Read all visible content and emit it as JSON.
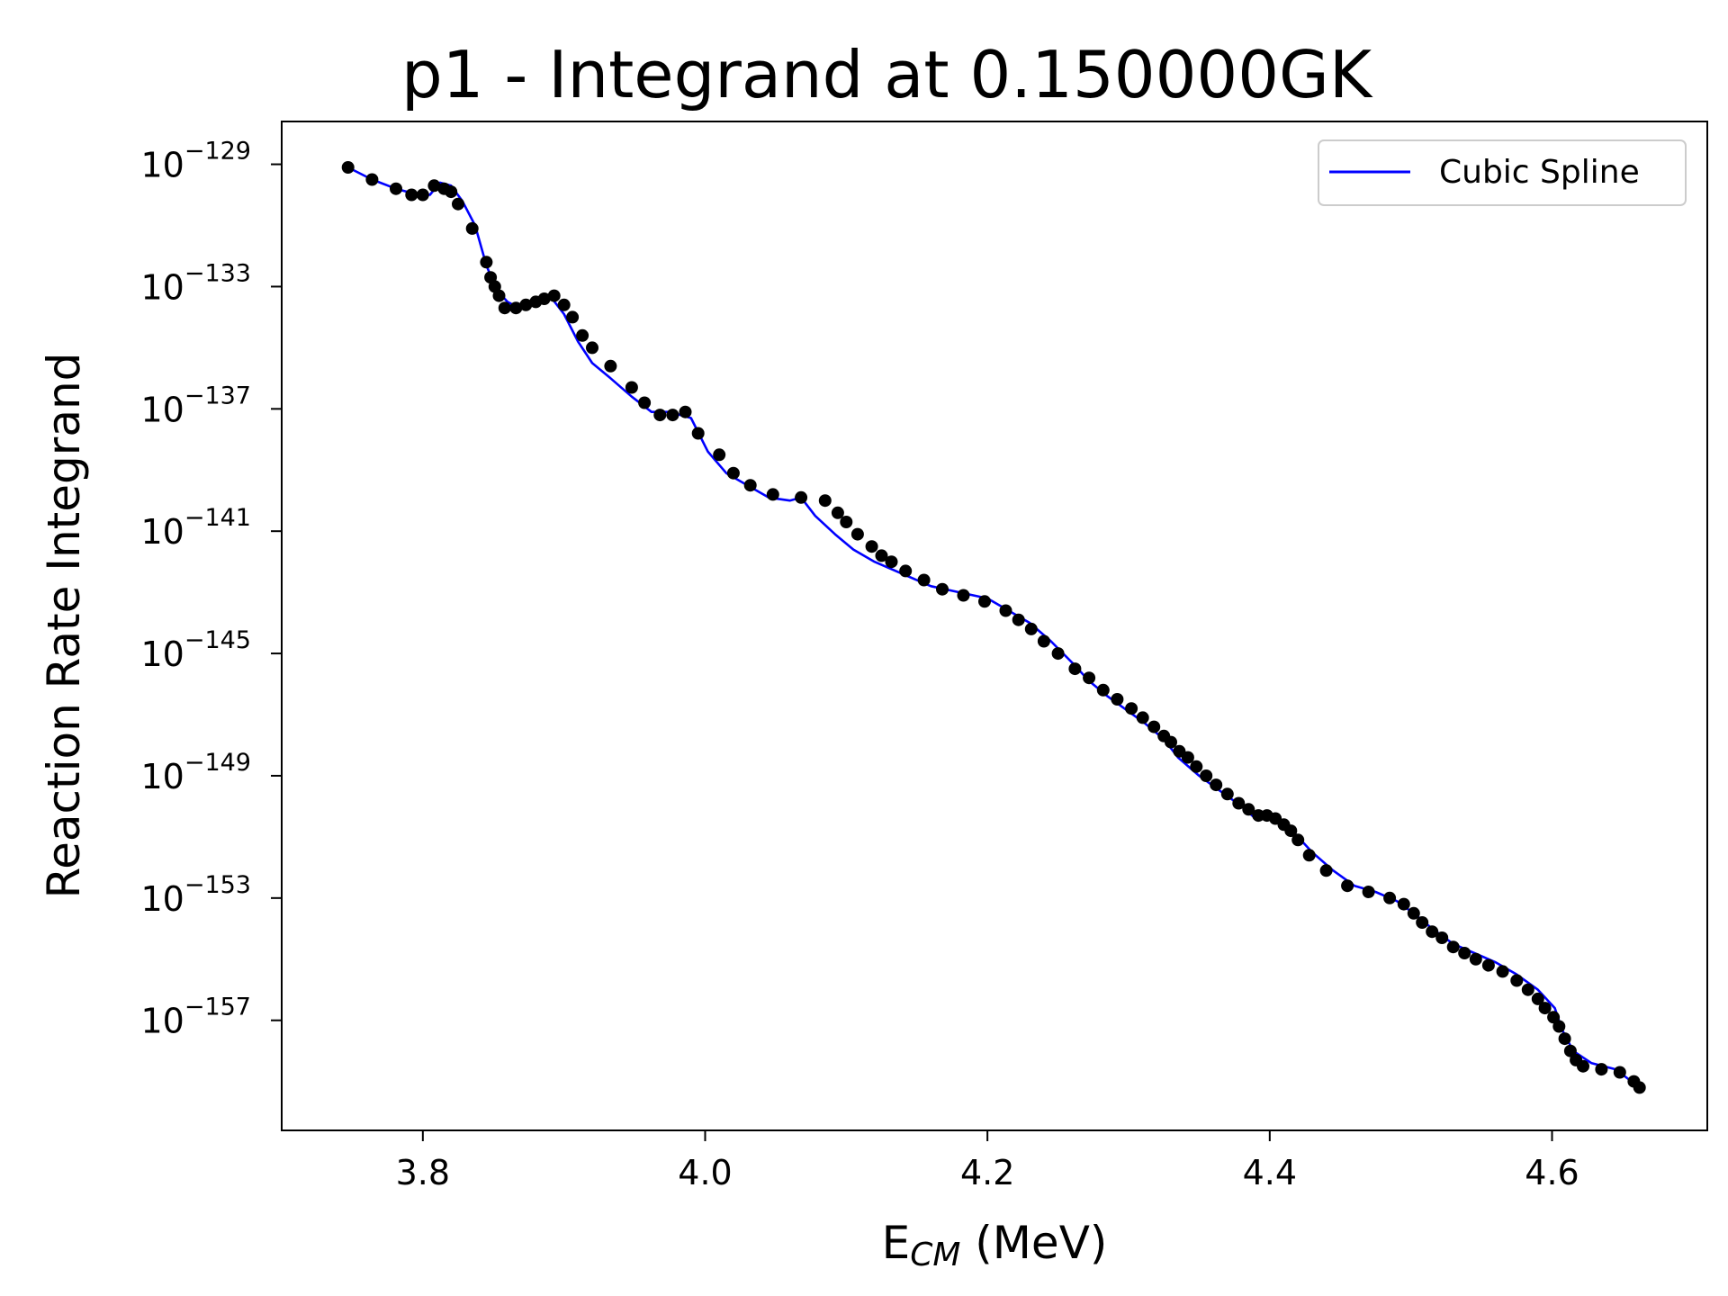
{
  "chart_data": {
    "type": "scatter",
    "title": "p1 - Integrand at 0.150000GK",
    "xlabel": {
      "base": "E",
      "subscript": "CM",
      "suffix": " (MeV)"
    },
    "ylabel": "Reaction Rate Integrand",
    "yscale": "log",
    "xlim": [
      3.7,
      4.71
    ],
    "ylim_exponent": [
      -160.6,
      -127.6
    ],
    "x_ticks": [
      {
        "value": 3.8,
        "label": "3.8"
      },
      {
        "value": 4.0,
        "label": "4.0"
      },
      {
        "value": 4.2,
        "label": "4.2"
      },
      {
        "value": 4.4,
        "label": "4.4"
      },
      {
        "value": 4.6,
        "label": "4.6"
      }
    ],
    "y_ticks": [
      {
        "exponent": -129,
        "base": "10",
        "sup": "−129"
      },
      {
        "exponent": -133,
        "base": "10",
        "sup": "−133"
      },
      {
        "exponent": -137,
        "base": "10",
        "sup": "−137"
      },
      {
        "exponent": -141,
        "base": "10",
        "sup": "−141"
      },
      {
        "exponent": -145,
        "base": "10",
        "sup": "−145"
      },
      {
        "exponent": -149,
        "base": "10",
        "sup": "−149"
      },
      {
        "exponent": -153,
        "base": "10",
        "sup": "−153"
      },
      {
        "exponent": -157,
        "base": "10",
        "sup": "−157"
      }
    ],
    "grid": false,
    "legend": {
      "position": "top-right",
      "entries": [
        {
          "label": "Cubic Spline",
          "color": "#0000ff",
          "style": "line"
        }
      ]
    },
    "series": [
      {
        "name": "Cubic Spline",
        "kind": "line",
        "color": "#0000ff",
        "x": [
          3.747,
          3.764,
          3.781,
          3.797,
          3.805,
          3.812,
          3.82,
          3.828,
          3.837,
          3.845,
          3.852,
          3.86,
          3.868,
          3.878,
          3.89,
          3.9,
          3.91,
          3.92,
          3.933,
          3.948,
          3.962,
          3.975,
          3.99,
          4.002,
          4.015,
          4.03,
          4.045,
          4.06,
          4.068,
          4.078,
          4.092,
          4.105,
          4.12,
          4.14,
          4.16,
          4.18,
          4.2,
          4.215,
          4.23,
          4.245,
          4.26,
          4.272,
          4.285,
          4.3,
          4.312,
          4.325,
          4.335,
          4.35,
          4.365,
          4.38,
          4.39,
          4.398,
          4.408,
          4.418,
          4.43,
          4.445,
          4.46,
          4.475,
          4.49,
          4.502,
          4.515,
          4.53,
          4.545,
          4.56,
          4.575,
          4.59,
          4.602,
          4.607,
          4.615,
          4.628,
          4.645,
          4.662
        ],
        "y": [
          -129.1,
          -129.5,
          -129.8,
          -130.0,
          -130.0,
          -129.6,
          -129.7,
          -130.2,
          -131.0,
          -132.3,
          -133.1,
          -133.5,
          -133.7,
          -133.6,
          -133.3,
          -133.9,
          -134.8,
          -135.5,
          -136.0,
          -136.6,
          -137.1,
          -137.1,
          -137.3,
          -138.4,
          -139.1,
          -139.5,
          -139.9,
          -140.0,
          -139.9,
          -140.5,
          -141.1,
          -141.6,
          -142.0,
          -142.4,
          -142.8,
          -143.0,
          -143.2,
          -143.6,
          -144.0,
          -144.6,
          -145.3,
          -145.9,
          -146.4,
          -146.9,
          -147.3,
          -147.8,
          -148.4,
          -149.0,
          -149.5,
          -150.0,
          -150.4,
          -150.3,
          -150.5,
          -150.9,
          -151.5,
          -152.1,
          -152.6,
          -152.8,
          -153.1,
          -153.5,
          -154.0,
          -154.5,
          -154.8,
          -155.1,
          -155.5,
          -156.0,
          -156.6,
          -157.3,
          -158.0,
          -158.4,
          -158.6,
          -159.2
        ]
      },
      {
        "name": "",
        "kind": "points",
        "color": "#000000",
        "x": [
          3.747,
          3.764,
          3.781,
          3.792,
          3.8,
          3.808,
          3.815,
          3.82,
          3.825,
          3.835,
          3.845,
          3.848,
          3.851,
          3.854,
          3.858,
          3.866,
          3.873,
          3.88,
          3.886,
          3.893,
          3.9,
          3.906,
          3.913,
          3.92,
          3.933,
          3.948,
          3.957,
          3.968,
          3.977,
          3.986,
          3.995,
          4.01,
          4.02,
          4.032,
          4.048,
          4.068,
          4.085,
          4.094,
          4.1,
          4.108,
          4.118,
          4.125,
          4.132,
          4.142,
          4.155,
          4.168,
          4.183,
          4.198,
          4.213,
          4.222,
          4.231,
          4.24,
          4.25,
          4.262,
          4.272,
          4.282,
          4.292,
          4.302,
          4.31,
          4.318,
          4.325,
          4.33,
          4.336,
          4.342,
          4.348,
          4.355,
          4.362,
          4.37,
          4.378,
          4.385,
          4.392,
          4.398,
          4.404,
          4.41,
          4.415,
          4.42,
          4.428,
          4.44,
          4.455,
          4.47,
          4.485,
          4.495,
          4.502,
          4.508,
          4.515,
          4.522,
          4.53,
          4.538,
          4.546,
          4.555,
          4.565,
          4.575,
          4.583,
          4.59,
          4.595,
          4.601,
          4.605,
          4.609,
          4.613,
          4.617,
          4.622,
          4.635,
          4.648,
          4.658,
          4.662
        ],
        "y": [
          -129.1,
          -129.5,
          -129.8,
          -130.0,
          -130.0,
          -129.7,
          -129.8,
          -129.9,
          -130.3,
          -131.1,
          -132.2,
          -132.7,
          -133.0,
          -133.3,
          -133.7,
          -133.7,
          -133.6,
          -133.5,
          -133.4,
          -133.3,
          -133.6,
          -134.0,
          -134.6,
          -135.0,
          -135.6,
          -136.3,
          -136.8,
          -137.2,
          -137.2,
          -137.1,
          -137.8,
          -138.5,
          -139.1,
          -139.5,
          -139.8,
          -139.9,
          -140.0,
          -140.4,
          -140.7,
          -141.1,
          -141.5,
          -141.8,
          -142.0,
          -142.3,
          -142.6,
          -142.9,
          -143.1,
          -143.3,
          -143.6,
          -143.9,
          -144.2,
          -144.6,
          -145.0,
          -145.5,
          -145.8,
          -146.2,
          -146.5,
          -146.8,
          -147.1,
          -147.4,
          -147.7,
          -147.9,
          -148.2,
          -148.4,
          -148.7,
          -149.0,
          -149.3,
          -149.6,
          -149.9,
          -150.1,
          -150.3,
          -150.3,
          -150.4,
          -150.6,
          -150.8,
          -151.1,
          -151.6,
          -152.1,
          -152.6,
          -152.8,
          -153.0,
          -153.2,
          -153.5,
          -153.8,
          -154.1,
          -154.3,
          -154.6,
          -154.8,
          -155.0,
          -155.2,
          -155.4,
          -155.7,
          -156.0,
          -156.3,
          -156.6,
          -156.9,
          -157.2,
          -157.6,
          -158.0,
          -158.3,
          -158.5,
          -158.6,
          -158.7,
          -159.0,
          -159.2
        ]
      }
    ]
  }
}
